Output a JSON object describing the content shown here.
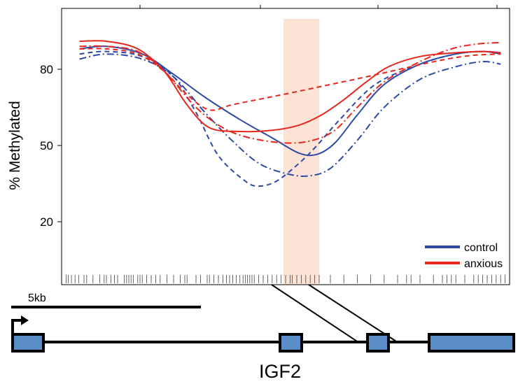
{
  "chart_data": {
    "type": "line",
    "title": "",
    "xlabel": "",
    "ylabel": "% Methylated",
    "x_range": [
      0,
      1
    ],
    "ylim": [
      0,
      100
    ],
    "y_ticks": [
      20,
      50,
      80
    ],
    "grid": false,
    "legend_position": "bottom-right",
    "colors": {
      "control": "#2b4aa8",
      "anxious": "#e8261b",
      "highlight": "#fde3d6",
      "exon": "#5b8ec9"
    },
    "legend": [
      {
        "label": "control",
        "color": "#2b4aa8"
      },
      {
        "label": "anxious",
        "color": "#e8261b"
      }
    ],
    "highlight_region": [
      0.495,
      0.575
    ],
    "series": [
      {
        "group": "control",
        "style": "solid",
        "points": [
          [
            0.04,
            88
          ],
          [
            0.1,
            89
          ],
          [
            0.18,
            86
          ],
          [
            0.25,
            78
          ],
          [
            0.32,
            69
          ],
          [
            0.4,
            60
          ],
          [
            0.47,
            53
          ],
          [
            0.53,
            47
          ],
          [
            0.57,
            46.5
          ],
          [
            0.61,
            51
          ],
          [
            0.66,
            62
          ],
          [
            0.72,
            74
          ],
          [
            0.8,
            82
          ],
          [
            0.88,
            86
          ],
          [
            0.94,
            87
          ],
          [
            0.98,
            86
          ]
        ]
      },
      {
        "group": "control",
        "style": "dashed",
        "points": [
          [
            0.04,
            86
          ],
          [
            0.1,
            87
          ],
          [
            0.18,
            85
          ],
          [
            0.25,
            77
          ],
          [
            0.3,
            63
          ],
          [
            0.35,
            46
          ],
          [
            0.41,
            36
          ],
          [
            0.44,
            34
          ],
          [
            0.48,
            36
          ],
          [
            0.53,
            43
          ],
          [
            0.57,
            50
          ],
          [
            0.62,
            60
          ],
          [
            0.7,
            74
          ],
          [
            0.8,
            82
          ],
          [
            0.88,
            86
          ],
          [
            0.94,
            87
          ],
          [
            0.98,
            86.5
          ]
        ]
      },
      {
        "group": "control",
        "style": "dashdot",
        "points": [
          [
            0.04,
            84
          ],
          [
            0.1,
            86
          ],
          [
            0.18,
            84
          ],
          [
            0.25,
            77
          ],
          [
            0.32,
            63
          ],
          [
            0.38,
            52
          ],
          [
            0.44,
            43
          ],
          [
            0.5,
            39
          ],
          [
            0.55,
            38
          ],
          [
            0.6,
            41
          ],
          [
            0.66,
            52
          ],
          [
            0.72,
            65
          ],
          [
            0.8,
            76
          ],
          [
            0.88,
            81
          ],
          [
            0.94,
            83
          ],
          [
            0.98,
            82
          ]
        ]
      },
      {
        "group": "anxious",
        "style": "solid",
        "points": [
          [
            0.04,
            91
          ],
          [
            0.1,
            91
          ],
          [
            0.17,
            88
          ],
          [
            0.23,
            79
          ],
          [
            0.28,
            66
          ],
          [
            0.33,
            57
          ],
          [
            0.4,
            55.5
          ],
          [
            0.47,
            56
          ],
          [
            0.53,
            58
          ],
          [
            0.58,
            62
          ],
          [
            0.63,
            68
          ],
          [
            0.68,
            75
          ],
          [
            0.73,
            81
          ],
          [
            0.8,
            85
          ],
          [
            0.88,
            86.5
          ],
          [
            0.94,
            87
          ],
          [
            0.98,
            86.5
          ]
        ]
      },
      {
        "group": "anxious",
        "style": "dashed",
        "points": [
          [
            0.04,
            88
          ],
          [
            0.1,
            88
          ],
          [
            0.17,
            86
          ],
          [
            0.23,
            79
          ],
          [
            0.28,
            70
          ],
          [
            0.33,
            64
          ],
          [
            0.38,
            66
          ],
          [
            0.45,
            68.5
          ],
          [
            0.52,
            71
          ],
          [
            0.6,
            74
          ],
          [
            0.68,
            77
          ],
          [
            0.78,
            81
          ],
          [
            0.86,
            84
          ],
          [
            0.92,
            85.5
          ],
          [
            0.98,
            86
          ]
        ]
      },
      {
        "group": "anxious",
        "style": "dashdot",
        "points": [
          [
            0.04,
            89
          ],
          [
            0.1,
            89
          ],
          [
            0.17,
            87
          ],
          [
            0.23,
            79
          ],
          [
            0.3,
            65
          ],
          [
            0.36,
            57
          ],
          [
            0.42,
            53
          ],
          [
            0.5,
            51
          ],
          [
            0.56,
            52
          ],
          [
            0.61,
            56
          ],
          [
            0.66,
            65
          ],
          [
            0.72,
            75
          ],
          [
            0.8,
            83
          ],
          [
            0.87,
            88
          ],
          [
            0.93,
            90
          ],
          [
            0.98,
            90.5
          ]
        ]
      }
    ],
    "cpg_ticks": [
      0.01,
      0.015,
      0.022,
      0.03,
      0.038,
      0.05,
      0.056,
      0.07,
      0.085,
      0.095,
      0.1,
      0.11,
      0.118,
      0.125,
      0.14,
      0.145,
      0.15,
      0.155,
      0.16,
      0.17,
      0.175,
      0.18,
      0.19,
      0.2,
      0.21,
      0.22,
      0.235,
      0.25,
      0.265,
      0.275,
      0.28,
      0.3,
      0.31,
      0.325,
      0.33,
      0.34,
      0.35,
      0.36,
      0.368,
      0.375,
      0.382,
      0.39,
      0.398,
      0.405,
      0.41,
      0.415,
      0.42,
      0.425,
      0.43,
      0.44,
      0.45,
      0.46,
      0.47,
      0.48,
      0.49,
      0.5,
      0.51,
      0.515,
      0.525,
      0.535,
      0.545,
      0.555,
      0.565,
      0.575,
      0.6,
      0.63,
      0.66,
      0.69,
      0.72,
      0.75,
      0.77,
      0.78,
      0.8,
      0.83,
      0.85,
      0.86,
      0.87,
      0.88,
      0.9,
      0.92,
      0.93,
      0.94,
      0.95,
      0.96,
      0.97,
      0.98,
      0.99
    ],
    "scale_bar_label": "5kb",
    "gene_label": "IGF2"
  }
}
